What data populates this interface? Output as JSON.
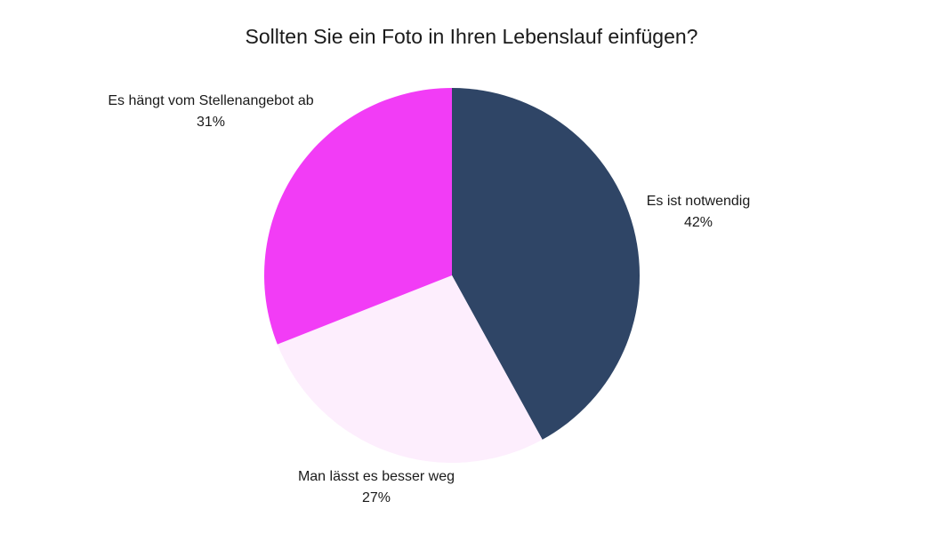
{
  "chart_data": {
    "type": "pie",
    "title": "Sollten Sie ein Foto in Ihren Lebenslauf einfügen?",
    "slices": [
      {
        "label": "Es ist notwendig",
        "value": 42,
        "value_label": "42%",
        "color": "#2f4566"
      },
      {
        "label": "Man lässt es besser weg",
        "value": 27,
        "value_label": "27%",
        "color": "#fdeefd"
      },
      {
        "label": "Es hängt vom Stellenangebot ab",
        "value": 31,
        "value_label": "31%",
        "color": "#f23cf6"
      }
    ],
    "start": "12 o'clock",
    "direction": "clockwise"
  }
}
